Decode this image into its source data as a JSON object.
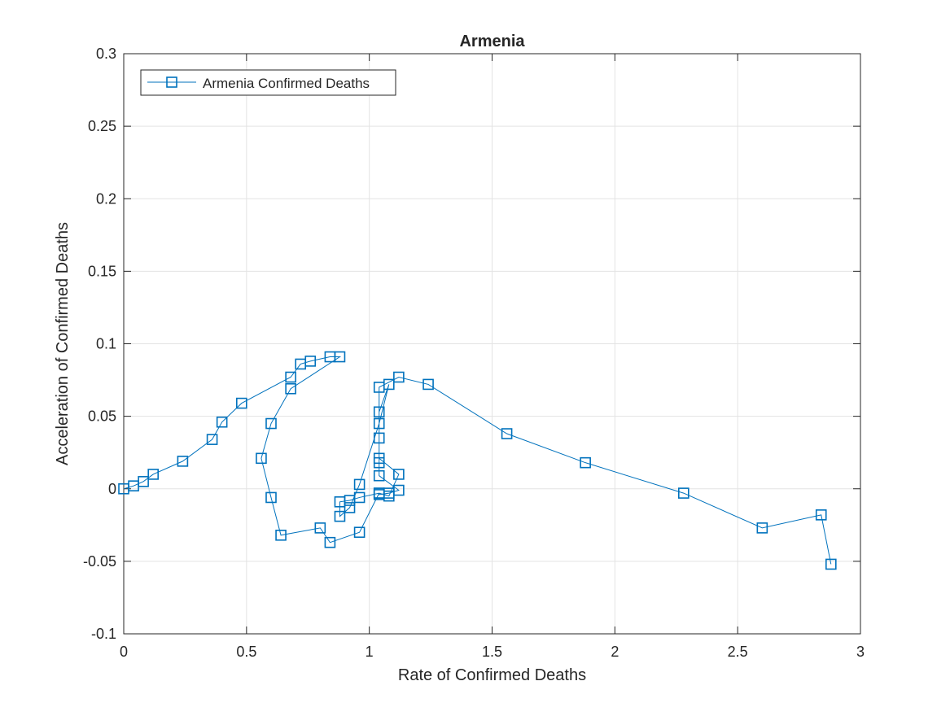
{
  "chart_data": {
    "type": "line",
    "title": "Armenia",
    "xlabel": "Rate of Confirmed Deaths",
    "ylabel": "Acceleration of Confirmed Deaths",
    "xlim": [
      0,
      3
    ],
    "ylim": [
      -0.1,
      0.3
    ],
    "xticks": [
      0,
      0.5,
      1,
      1.5,
      2,
      2.5,
      3
    ],
    "xtick_labels": [
      "0",
      "0.5",
      "1",
      "1.5",
      "2",
      "2.5",
      "3"
    ],
    "yticks": [
      -0.1,
      -0.05,
      0,
      0.05,
      0.1,
      0.15,
      0.2,
      0.25,
      0.3
    ],
    "ytick_labels": [
      "-0.1",
      "-0.05",
      "0",
      "0.05",
      "0.1",
      "0.15",
      "0.2",
      "0.25",
      "0.3"
    ],
    "grid": true,
    "legend_position": "top-left",
    "marker": "square",
    "color": "#0072BD",
    "series": [
      {
        "name": "Armenia Confirmed Deaths",
        "x": [
          0,
          0.04,
          0.08,
          0.12,
          0.24,
          0.36,
          0.4,
          0.48,
          0.68,
          0.72,
          0.76,
          0.84,
          0.88,
          0.68,
          0.6,
          0.56,
          0.6,
          0.64,
          0.8,
          0.84,
          0.96,
          1.04,
          1.04,
          1.08,
          1.12,
          1.04,
          1.04,
          1.04,
          1.04,
          1.08,
          1.04,
          0.96,
          0.92,
          0.88,
          0.88,
          0.92,
          0.96,
          1.04,
          1.08,
          1.12,
          1.04,
          1.04,
          1.12,
          1.24,
          1.56,
          1.88,
          2.28,
          2.6,
          2.84,
          2.88
        ],
        "y": [
          0,
          0.002,
          0.005,
          0.01,
          0.019,
          0.034,
          0.046,
          0.059,
          0.077,
          0.086,
          0.088,
          0.091,
          0.091,
          0.069,
          0.045,
          0.021,
          -0.006,
          -0.032,
          -0.027,
          -0.037,
          -0.03,
          -0.003,
          -0.004,
          -0.003,
          -0.001,
          0.009,
          0.018,
          0.035,
          0.053,
          0.072,
          0.045,
          0.003,
          -0.013,
          -0.019,
          -0.009,
          -0.008,
          -0.006,
          -0.003,
          -0.005,
          0.01,
          0.021,
          0.07,
          0.077,
          0.072,
          0.038,
          0.018,
          -0.003,
          -0.027,
          -0.018,
          -0.052
        ]
      }
    ]
  }
}
